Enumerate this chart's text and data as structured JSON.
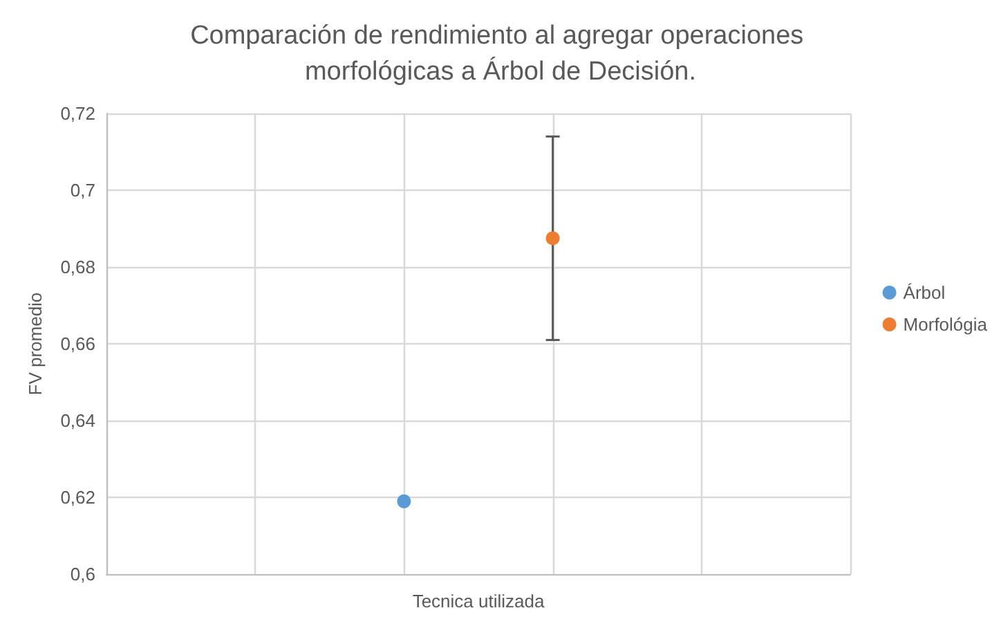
{
  "chart_data": {
    "type": "scatter",
    "title": "Comparación de rendimiento al agregar operaciones morfológicas a Árbol de Decisión.",
    "xlabel": "Tecnica utilizada",
    "ylabel": "FV promedio",
    "categories": [
      null,
      null,
      null,
      null,
      null,
      null
    ],
    "ylim": [
      0.6,
      0.72
    ],
    "yticks": [
      {
        "value": 0.6,
        "label": "0,6"
      },
      {
        "value": 0.62,
        "label": "0,62"
      },
      {
        "value": 0.64,
        "label": "0,64"
      },
      {
        "value": 0.66,
        "label": "0,66"
      },
      {
        "value": 0.68,
        "label": "0,68"
      },
      {
        "value": 0.7,
        "label": "0,7"
      },
      {
        "value": 0.72,
        "label": "0,72"
      }
    ],
    "grid": true,
    "legend": "right",
    "marker": "circle",
    "series": [
      {
        "name": "Árbol",
        "color": "#5b9bd5",
        "values": [
          null,
          null,
          0.619,
          null,
          null,
          null
        ]
      },
      {
        "name": "Morfológia",
        "color": "#ed7d31",
        "values": [
          null,
          null,
          null,
          0.6875,
          null,
          null
        ],
        "errors": [
          null,
          null,
          null,
          [
            0.661,
            0.714
          ],
          null,
          null
        ]
      }
    ]
  }
}
